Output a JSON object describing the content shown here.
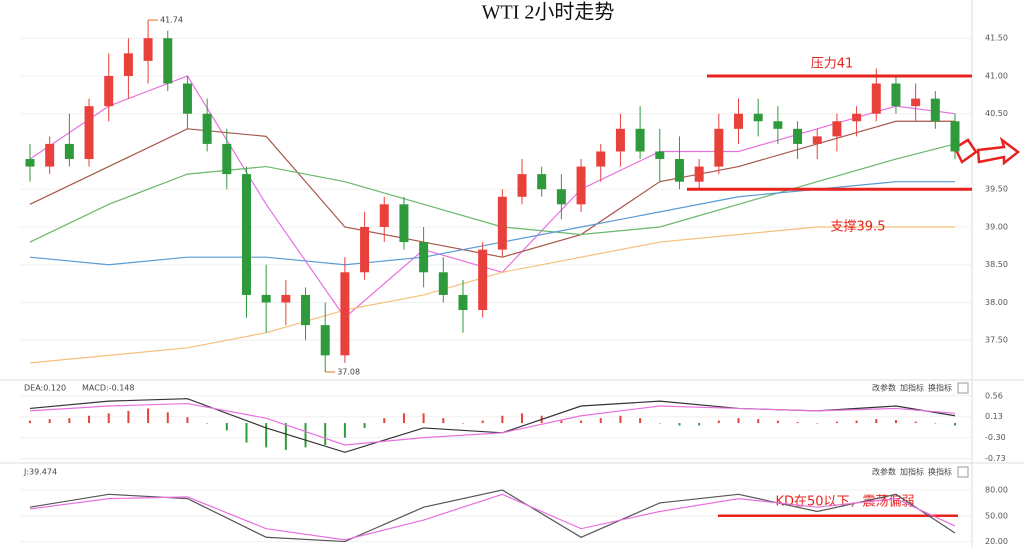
{
  "chart_data": {
    "type": "candlestick",
    "title": "WTI 2小时走势",
    "candles": [
      [
        39.9,
        40.1,
        39.6,
        39.8
      ],
      [
        39.8,
        40.2,
        39.7,
        40.1
      ],
      [
        40.1,
        40.5,
        39.8,
        39.9
      ],
      [
        39.9,
        40.7,
        39.8,
        40.6
      ],
      [
        40.6,
        41.3,
        40.4,
        41.0
      ],
      [
        41.0,
        41.5,
        40.7,
        41.3
      ],
      [
        41.2,
        41.74,
        40.9,
        41.5
      ],
      [
        41.5,
        41.6,
        40.8,
        40.9
      ],
      [
        40.9,
        41.0,
        40.3,
        40.5
      ],
      [
        40.5,
        40.7,
        40.0,
        40.1
      ],
      [
        40.1,
        40.3,
        39.5,
        39.7
      ],
      [
        39.7,
        39.8,
        37.8,
        38.1
      ],
      [
        38.1,
        38.5,
        37.6,
        38.0
      ],
      [
        38.0,
        38.3,
        37.7,
        38.1
      ],
      [
        38.1,
        38.2,
        37.5,
        37.7
      ],
      [
        37.7,
        38.0,
        37.08,
        37.3
      ],
      [
        37.3,
        38.6,
        37.2,
        38.4
      ],
      [
        38.4,
        39.2,
        38.3,
        39.0
      ],
      [
        39.0,
        39.4,
        38.8,
        39.3
      ],
      [
        39.3,
        39.4,
        38.7,
        38.8
      ],
      [
        38.8,
        39.0,
        38.2,
        38.4
      ],
      [
        38.4,
        38.6,
        38.0,
        38.1
      ],
      [
        38.1,
        38.3,
        37.6,
        37.9
      ],
      [
        37.9,
        38.8,
        37.8,
        38.7
      ],
      [
        38.7,
        39.5,
        38.6,
        39.4
      ],
      [
        39.4,
        39.9,
        39.3,
        39.7
      ],
      [
        39.7,
        39.8,
        39.4,
        39.5
      ],
      [
        39.5,
        39.7,
        39.1,
        39.3
      ],
      [
        39.3,
        39.9,
        39.2,
        39.8
      ],
      [
        39.8,
        40.1,
        39.6,
        40.0
      ],
      [
        40.0,
        40.5,
        39.8,
        40.3
      ],
      [
        40.3,
        40.6,
        39.9,
        40.0
      ],
      [
        40.0,
        40.3,
        39.6,
        39.9
      ],
      [
        39.9,
        40.2,
        39.5,
        39.6
      ],
      [
        39.6,
        39.9,
        39.5,
        39.8
      ],
      [
        39.8,
        40.5,
        39.7,
        40.3
      ],
      [
        40.3,
        40.7,
        40.1,
        40.5
      ],
      [
        40.5,
        40.7,
        40.2,
        40.4
      ],
      [
        40.4,
        40.6,
        40.1,
        40.3
      ],
      [
        40.3,
        40.4,
        39.9,
        40.1
      ],
      [
        40.1,
        40.3,
        39.9,
        40.2
      ],
      [
        40.2,
        40.5,
        40.0,
        40.4
      ],
      [
        40.4,
        40.6,
        40.2,
        40.5
      ],
      [
        40.5,
        41.1,
        40.4,
        40.9
      ],
      [
        40.9,
        41.0,
        40.5,
        40.6
      ],
      [
        40.6,
        40.9,
        40.4,
        40.7
      ],
      [
        40.7,
        40.8,
        40.3,
        40.4
      ],
      [
        40.4,
        40.5,
        39.9,
        40.0
      ]
    ],
    "up_color": "#e8413c",
    "down_color": "#2f9a3c",
    "ylim": [
      37.0,
      41.9
    ],
    "yticks": [
      {
        "value": 37.5,
        "label": "37.50"
      },
      {
        "value": 38,
        "label": "38.00"
      },
      {
        "value": 38.5,
        "label": "38.50"
      },
      {
        "value": 39,
        "label": "39.00"
      },
      {
        "value": 39.5,
        "label": "39.50"
      },
      {
        "value": 40.5,
        "label": "40.50"
      },
      {
        "value": 41,
        "label": "41.00"
      },
      {
        "value": 41.5,
        "label": "41.50"
      }
    ],
    "line_x": [
      0,
      4,
      8,
      12,
      16,
      20,
      24,
      28,
      32,
      36,
      40,
      44,
      47
    ],
    "series": [
      {
        "color": "#e870e0",
        "values": [
          39.9,
          40.6,
          41.0,
          39.3,
          37.8,
          38.7,
          38.4,
          39.5,
          40.0,
          40.0,
          40.3,
          40.6,
          40.5
        ]
      },
      {
        "color": "#a8564c",
        "values": [
          39.3,
          39.8,
          40.3,
          40.2,
          39.0,
          38.8,
          38.6,
          38.9,
          39.6,
          39.8,
          40.1,
          40.4,
          40.4
        ]
      },
      {
        "color": "#6ab86a",
        "values": [
          38.8,
          39.3,
          39.7,
          39.8,
          39.6,
          39.3,
          39.0,
          38.9,
          39.0,
          39.3,
          39.6,
          39.9,
          40.1
        ]
      },
      {
        "color": "#5b9bd5",
        "values": [
          38.6,
          38.5,
          38.6,
          38.6,
          38.5,
          38.6,
          38.8,
          39.0,
          39.2,
          39.4,
          39.5,
          39.6,
          39.6
        ]
      },
      {
        "color": "#f5c07a",
        "values": [
          37.2,
          37.3,
          37.4,
          37.6,
          37.9,
          38.1,
          38.4,
          38.6,
          38.8,
          38.9,
          39.0,
          39.0,
          39.0
        ]
      }
    ],
    "levels": [
      {
        "label": "压力41",
        "value": 41
      },
      {
        "label": "支撑39.5",
        "value": 39.5
      }
    ],
    "macd": {
      "header": [
        "DEA:0.120",
        "MACD:-0.148"
      ],
      "ylim": [
        -0.8,
        0.72
      ],
      "yticks": [
        0.56,
        0.13,
        {
          "value": -0.3,
          "label": "-0.30"
        },
        -0.73
      ],
      "histogram": [
        0.05,
        0.08,
        0.1,
        0.15,
        0.2,
        0.25,
        0.3,
        0.22,
        0.12,
        0.0,
        -0.15,
        -0.4,
        -0.5,
        -0.55,
        -0.5,
        -0.45,
        -0.3,
        -0.1,
        0.1,
        0.2,
        0.2,
        0.1,
        0.0,
        0.05,
        0.15,
        0.2,
        0.15,
        0.05,
        0.05,
        0.1,
        0.15,
        0.1,
        0.0,
        -0.05,
        -0.05,
        0.05,
        0.1,
        0.08,
        0.05,
        0.02,
        0.0,
        0.03,
        0.05,
        0.08,
        0.06,
        0.03,
        0.0,
        -0.05
      ],
      "series": [
        {
          "color": "#333333",
          "values": [
            0.3,
            0.45,
            0.5,
            -0.1,
            -0.6,
            -0.1,
            -0.2,
            0.35,
            0.45,
            0.3,
            0.25,
            0.35,
            0.15
          ]
        },
        {
          "color": "#e870e0",
          "values": [
            0.25,
            0.35,
            0.4,
            0.1,
            -0.45,
            -0.3,
            -0.2,
            0.15,
            0.35,
            0.3,
            0.25,
            0.3,
            0.2
          ]
        }
      ]
    },
    "kd": {
      "header": "J:39.474",
      "ylim": [
        16,
        94
      ],
      "yticks": [
        {
          "value": 80,
          "label": "80.00"
        },
        {
          "value": 50,
          "label": "50.00"
        },
        {
          "value": 20,
          "label": "20.00"
        }
      ],
      "annotation": {
        "label": "KD在50以下，震荡偏弱",
        "value": 50
      },
      "series": [
        {
          "color": "#555555",
          "values": [
            60,
            75,
            70,
            25,
            20,
            60,
            80,
            25,
            65,
            75,
            55,
            75,
            30
          ]
        },
        {
          "color": "#e870e0",
          "values": [
            58,
            70,
            72,
            35,
            22,
            45,
            75,
            35,
            55,
            70,
            60,
            70,
            38
          ]
        }
      ]
    },
    "buttons": [
      "改参数",
      "加指标",
      "换指标"
    ]
  }
}
